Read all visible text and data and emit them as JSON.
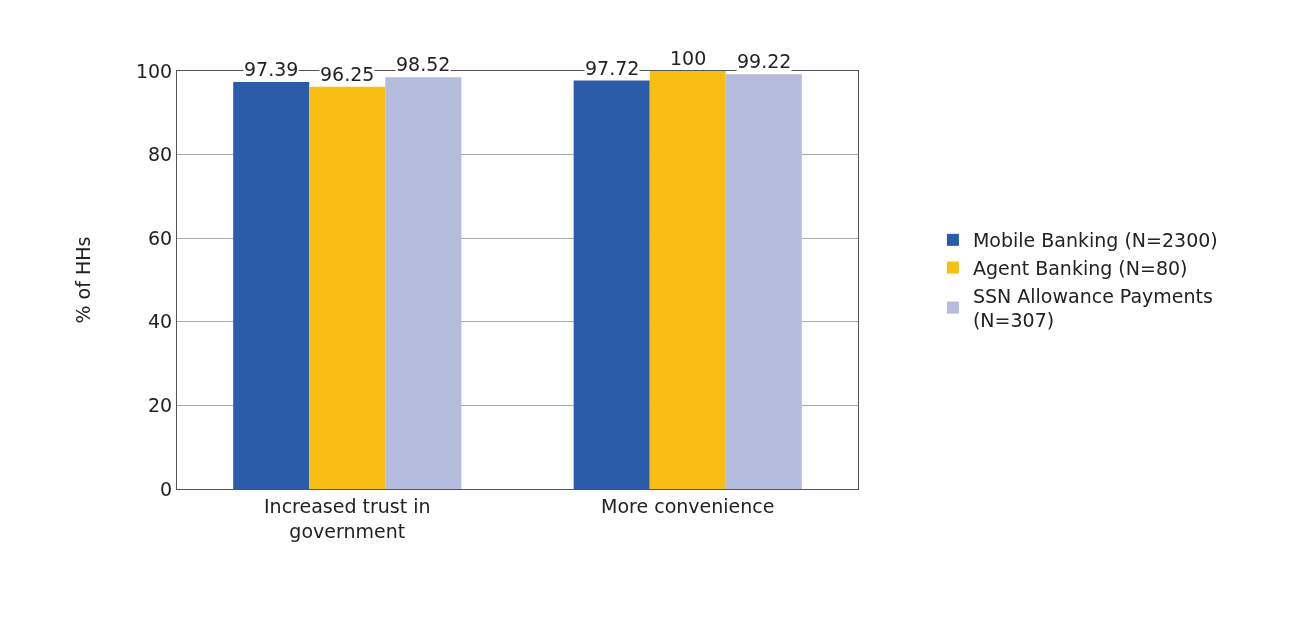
{
  "chart_data": {
    "type": "bar",
    "ylabel": "% of HHs",
    "categories": [
      "Increased trust in government",
      "More convenience"
    ],
    "series": [
      {
        "name": "Mobile Banking (N=2300)",
        "color": "#2a5caa",
        "values": [
          97.39,
          97.72
        ]
      },
      {
        "name": "Agent Banking (N=80)",
        "color": "#f9be14",
        "values": [
          96.25,
          100
        ]
      },
      {
        "name": "SSN Allowance Payments (N=307)",
        "color": "#b5bcde",
        "values": [
          98.52,
          99.22
        ]
      }
    ],
    "ylim": [
      0,
      100
    ],
    "yticks": [
      0,
      20,
      40,
      60,
      80,
      100
    ],
    "grid": "y",
    "legend": "right",
    "data_labels": true
  }
}
